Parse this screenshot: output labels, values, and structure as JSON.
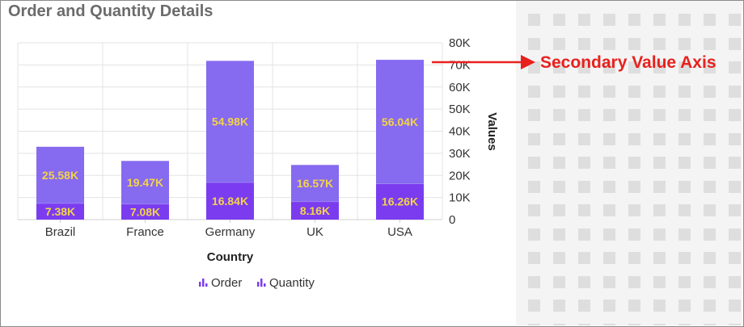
{
  "widget": {
    "title": "Order and Quantity Details"
  },
  "annotation": {
    "text": "Secondary Value Axis",
    "color": "#e8211d"
  },
  "chart_data": {
    "type": "bar",
    "stacked": true,
    "categories": [
      "Brazil",
      "France",
      "Germany",
      "UK",
      "USA"
    ],
    "series": [
      {
        "name": "Order",
        "values": [
          7.38,
          7.08,
          16.84,
          8.16,
          16.26
        ],
        "labels": [
          "7.38K",
          "7.08K",
          "16.84K",
          "8.16K",
          "16.26K"
        ],
        "color": "#7b3cf0"
      },
      {
        "name": "Quantity",
        "values": [
          25.58,
          19.47,
          54.98,
          16.57,
          56.04
        ],
        "labels": [
          "25.58K",
          "19.47K",
          "54.98K",
          "16.57K",
          "56.04K"
        ],
        "color": "#866af0"
      }
    ],
    "data_label_color": "#f3d34a",
    "xlabel": "Country",
    "ylabel": "Values",
    "y_axis_side": "right",
    "ylim": [
      0,
      80
    ],
    "yticks": [
      0,
      10,
      20,
      30,
      40,
      50,
      60,
      70,
      80
    ],
    "ytick_labels": [
      "0",
      "10K",
      "20K",
      "30K",
      "40K",
      "50K",
      "60K",
      "70K",
      "80K"
    ],
    "grid": true,
    "legend_position": "bottom"
  }
}
